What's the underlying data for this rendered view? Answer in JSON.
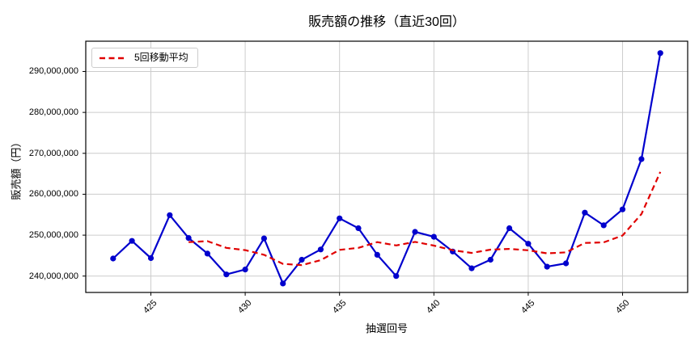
{
  "figure": {
    "title": "販売額の推移（直近30回）",
    "x_axis_label": "抽選回号",
    "y_axis_label": "販売額（円）"
  },
  "legend": {
    "items": [
      {
        "label": "5回移動平均",
        "color": "#e00000",
        "style": "dashed"
      }
    ]
  },
  "chart_data": {
    "type": "line",
    "title": "販売額の推移（直近30回）",
    "xlabel": "抽選回号",
    "ylabel": "販売額（円）",
    "x": [
      423,
      424,
      425,
      426,
      427,
      428,
      429,
      430,
      431,
      432,
      433,
      434,
      435,
      436,
      437,
      438,
      439,
      440,
      441,
      442,
      443,
      444,
      445,
      446,
      447,
      448,
      449,
      450,
      451,
      452
    ],
    "series": [
      {
        "name": "販売額",
        "color": "#0000cd",
        "line_style": "solid",
        "marker": "circle",
        "values": [
          244300000,
          248600000,
          244400000,
          254900000,
          249300000,
          245500000,
          240400000,
          241600000,
          249200000,
          238200000,
          244000000,
          246500000,
          254100000,
          251700000,
          245200000,
          240000000,
          250800000,
          249600000,
          246000000,
          241900000,
          244000000,
          251700000,
          247900000,
          242300000,
          243100000,
          255500000,
          252400000,
          256300000,
          268600000,
          294500000
        ]
      },
      {
        "name": "5回移動平均",
        "color": "#e00000",
        "line_style": "dashed",
        "marker": "none",
        "ma_window": 5,
        "values": [
          null,
          null,
          null,
          null,
          248300000,
          248540000,
          246900000,
          246340000,
          245200000,
          242980000,
          242680000,
          243900000,
          246400000,
          246900000,
          248300000,
          247500000,
          248360000,
          247460000,
          246320000,
          245660000,
          246460000,
          246640000,
          246300000,
          245560000,
          245800000,
          248100000,
          248240000,
          249920000,
          255180000,
          265460000
        ]
      }
    ],
    "xticks": [
      425,
      430,
      435,
      440,
      445,
      450
    ],
    "yticks": [
      240000000,
      250000000,
      260000000,
      270000000,
      280000000,
      290000000
    ],
    "ytick_labels": [
      "240,000,000",
      "250,000,000",
      "260,000,000",
      "270,000,000",
      "280,000,000",
      "290,000,000"
    ],
    "xlim": [
      421.55,
      453.45
    ],
    "ylim": [
      236000000,
      297400000
    ],
    "grid": true,
    "grid_color": "#cccccc",
    "legend_position": "upper-left"
  }
}
